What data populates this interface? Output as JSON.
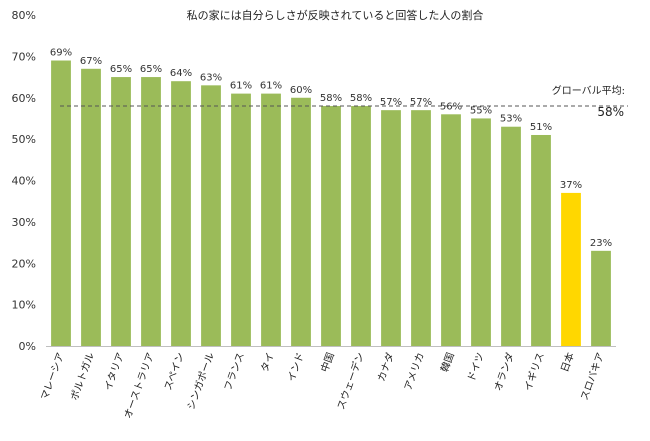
{
  "chart_data": {
    "type": "bar",
    "title": "私の家には自分らしさが反映されていると回答した人の割合",
    "xlabel": "",
    "ylabel": "",
    "categories": [
      "マレーシア",
      "ポルトガル",
      "イタリア",
      "オーストラリア",
      "スペイン",
      "シンガポール",
      "フランス",
      "タイ",
      "インド",
      "中国",
      "スウェーデン",
      "カナダ",
      "アメリカ",
      "韓国",
      "ドイツ",
      "オランダ",
      "イギリス",
      "日本",
      "スロバキア"
    ],
    "values": [
      69,
      67,
      65,
      65,
      64,
      63,
      61,
      61,
      60,
      58,
      58,
      57,
      57,
      56,
      55,
      53,
      51,
      37,
      23
    ],
    "value_labels": [
      "69%",
      "67%",
      "65%",
      "65%",
      "64%",
      "63%",
      "61%",
      "61%",
      "60%",
      "58%",
      "58%",
      "57%",
      "57%",
      "56%",
      "55%",
      "53%",
      "51%",
      "37%",
      "23%"
    ],
    "ylim": [
      0,
      80
    ],
    "y_ticks": [
      0,
      10,
      20,
      30,
      40,
      50,
      60,
      70,
      80
    ],
    "y_tick_labels": [
      "0%",
      "10%",
      "20%",
      "30%",
      "40%",
      "50%",
      "60%",
      "70%",
      "80%"
    ],
    "bar_color": "#9BBB59",
    "highlight_color": "#FFD700",
    "highlight_category": "日本",
    "grid": false,
    "reference_line": {
      "value": 58,
      "label": "グローバル平均:",
      "value_label": "58%",
      "style": "dashed",
      "color": "#555555"
    }
  }
}
